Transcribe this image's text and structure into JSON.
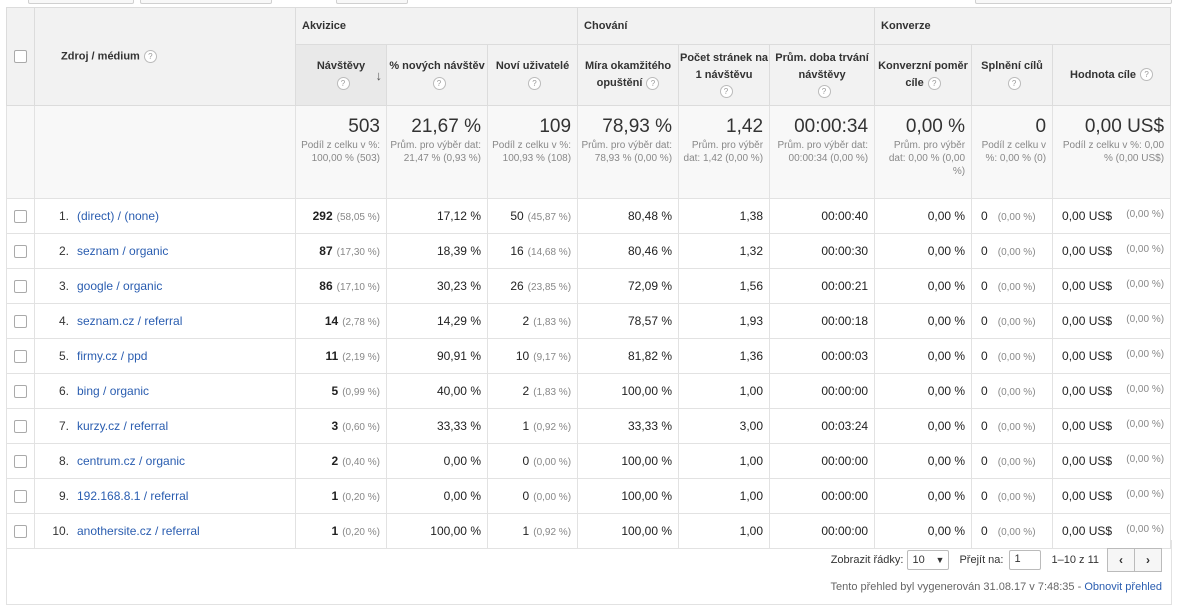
{
  "groups": {
    "acquisition": "Akvizice",
    "behavior": "Chování",
    "conversions": "Konverze"
  },
  "columns": {
    "source": "Zdroj / médium",
    "visits": "Návštěvy",
    "new_visits_pct": "% nových návštěv",
    "new_users": "Noví uživatelé",
    "bounce_rate": "Míra okamžitého opuštění",
    "pages_per_visit": "Počet stránek na 1 návštěvu",
    "avg_duration": "Prům. doba trvání návštěvy",
    "conv_rate": "Konverzní poměr cíle",
    "goal_completions": "Splnění cílů",
    "goal_value": "Hodnota cíle"
  },
  "totals": {
    "visits": "503",
    "visits_sub": "Podíl z celku v %: 100,00 % (503)",
    "new_visits_pct": "21,67 %",
    "new_visits_pct_sub": "Prům. pro výběr dat: 21,47 % (0,93 %)",
    "new_users": "109",
    "new_users_sub": "Podíl z celku v %: 100,93 % (108)",
    "bounce_rate": "78,93 %",
    "bounce_rate_sub": "Prům. pro výběr dat: 78,93 % (0,00 %)",
    "pages_per_visit": "1,42",
    "pages_per_visit_sub": "Prům. pro výběr dat: 1,42 (0,00 %)",
    "avg_duration": "00:00:34",
    "avg_duration_sub": "Prům. pro výběr dat: 00:00:34 (0,00 %)",
    "conv_rate": "0,00 %",
    "conv_rate_sub": "Prům. pro výběr dat: 0,00 % (0,00 %)",
    "goal_completions": "0",
    "goal_completions_sub": "Podíl z celku v %: 0,00 % (0)",
    "goal_value": "0,00 US$",
    "goal_value_sub": "Podíl z celku v %: 0,00 % (0,00 US$)"
  },
  "rows": [
    {
      "idx": "1.",
      "source": "(direct) / (none)",
      "visits": "292",
      "visits_pct": "(58,05 %)",
      "new_pct": "17,12 %",
      "new_users": "50",
      "new_users_pct": "(45,87 %)",
      "bounce": "80,48 %",
      "ppv": "1,38",
      "dur": "00:00:40",
      "conv": "0,00 %",
      "goals": "0",
      "goals_pct": "(0,00 %)",
      "value": "0,00 US$",
      "value_pct": "(0,00 %)"
    },
    {
      "idx": "2.",
      "source": "seznam / organic",
      "visits": "87",
      "visits_pct": "(17,30 %)",
      "new_pct": "18,39 %",
      "new_users": "16",
      "new_users_pct": "(14,68 %)",
      "bounce": "80,46 %",
      "ppv": "1,32",
      "dur": "00:00:30",
      "conv": "0,00 %",
      "goals": "0",
      "goals_pct": "(0,00 %)",
      "value": "0,00 US$",
      "value_pct": "(0,00 %)"
    },
    {
      "idx": "3.",
      "source": "google / organic",
      "visits": "86",
      "visits_pct": "(17,10 %)",
      "new_pct": "30,23 %",
      "new_users": "26",
      "new_users_pct": "(23,85 %)",
      "bounce": "72,09 %",
      "ppv": "1,56",
      "dur": "00:00:21",
      "conv": "0,00 %",
      "goals": "0",
      "goals_pct": "(0,00 %)",
      "value": "0,00 US$",
      "value_pct": "(0,00 %)"
    },
    {
      "idx": "4.",
      "source": "seznam.cz / referral",
      "visits": "14",
      "visits_pct": "(2,78 %)",
      "new_pct": "14,29 %",
      "new_users": "2",
      "new_users_pct": "(1,83 %)",
      "bounce": "78,57 %",
      "ppv": "1,93",
      "dur": "00:00:18",
      "conv": "0,00 %",
      "goals": "0",
      "goals_pct": "(0,00 %)",
      "value": "0,00 US$",
      "value_pct": "(0,00 %)"
    },
    {
      "idx": "5.",
      "source": "firmy.cz / ppd",
      "visits": "11",
      "visits_pct": "(2,19 %)",
      "new_pct": "90,91 %",
      "new_users": "10",
      "new_users_pct": "(9,17 %)",
      "bounce": "81,82 %",
      "ppv": "1,36",
      "dur": "00:00:03",
      "conv": "0,00 %",
      "goals": "0",
      "goals_pct": "(0,00 %)",
      "value": "0,00 US$",
      "value_pct": "(0,00 %)"
    },
    {
      "idx": "6.",
      "source": "bing / organic",
      "visits": "5",
      "visits_pct": "(0,99 %)",
      "new_pct": "40,00 %",
      "new_users": "2",
      "new_users_pct": "(1,83 %)",
      "bounce": "100,00 %",
      "ppv": "1,00",
      "dur": "00:00:00",
      "conv": "0,00 %",
      "goals": "0",
      "goals_pct": "(0,00 %)",
      "value": "0,00 US$",
      "value_pct": "(0,00 %)"
    },
    {
      "idx": "7.",
      "source": "kurzy.cz / referral",
      "visits": "3",
      "visits_pct": "(0,60 %)",
      "new_pct": "33,33 %",
      "new_users": "1",
      "new_users_pct": "(0,92 %)",
      "bounce": "33,33 %",
      "ppv": "3,00",
      "dur": "00:03:24",
      "conv": "0,00 %",
      "goals": "0",
      "goals_pct": "(0,00 %)",
      "value": "0,00 US$",
      "value_pct": "(0,00 %)"
    },
    {
      "idx": "8.",
      "source": "centrum.cz / organic",
      "visits": "2",
      "visits_pct": "(0,40 %)",
      "new_pct": "0,00 %",
      "new_users": "0",
      "new_users_pct": "(0,00 %)",
      "bounce": "100,00 %",
      "ppv": "1,00",
      "dur": "00:00:00",
      "conv": "0,00 %",
      "goals": "0",
      "goals_pct": "(0,00 %)",
      "value": "0,00 US$",
      "value_pct": "(0,00 %)"
    },
    {
      "idx": "9.",
      "source": "192.168.8.1 / referral",
      "visits": "1",
      "visits_pct": "(0,20 %)",
      "new_pct": "0,00 %",
      "new_users": "0",
      "new_users_pct": "(0,00 %)",
      "bounce": "100,00 %",
      "ppv": "1,00",
      "dur": "00:00:00",
      "conv": "0,00 %",
      "goals": "0",
      "goals_pct": "(0,00 %)",
      "value": "0,00 US$",
      "value_pct": "(0,00 %)"
    },
    {
      "idx": "10.",
      "source": "anothersite.cz / referral",
      "visits": "1",
      "visits_pct": "(0,20 %)",
      "new_pct": "100,00 %",
      "new_users": "1",
      "new_users_pct": "(0,92 %)",
      "bounce": "100,00 %",
      "ppv": "1,00",
      "dur": "00:00:00",
      "conv": "0,00 %",
      "goals": "0",
      "goals_pct": "(0,00 %)",
      "value": "0,00 US$",
      "value_pct": "(0,00 %)"
    }
  ],
  "pager": {
    "show_rows_label": "Zobrazit řádky:",
    "rows_value": "10",
    "goto_label": "Přejít na:",
    "goto_value": "1",
    "range": "1–10 z 11",
    "prev": "‹",
    "next": "›"
  },
  "generated": {
    "text": "Tento přehled byl vygenerován 31.08.17 v 7:48:35 - ",
    "link": "Obnovit přehled"
  },
  "colors": {
    "link": "#2a5db0",
    "header_bg": "#f2f2f2",
    "totals_bg": "#f8f8f8"
  }
}
